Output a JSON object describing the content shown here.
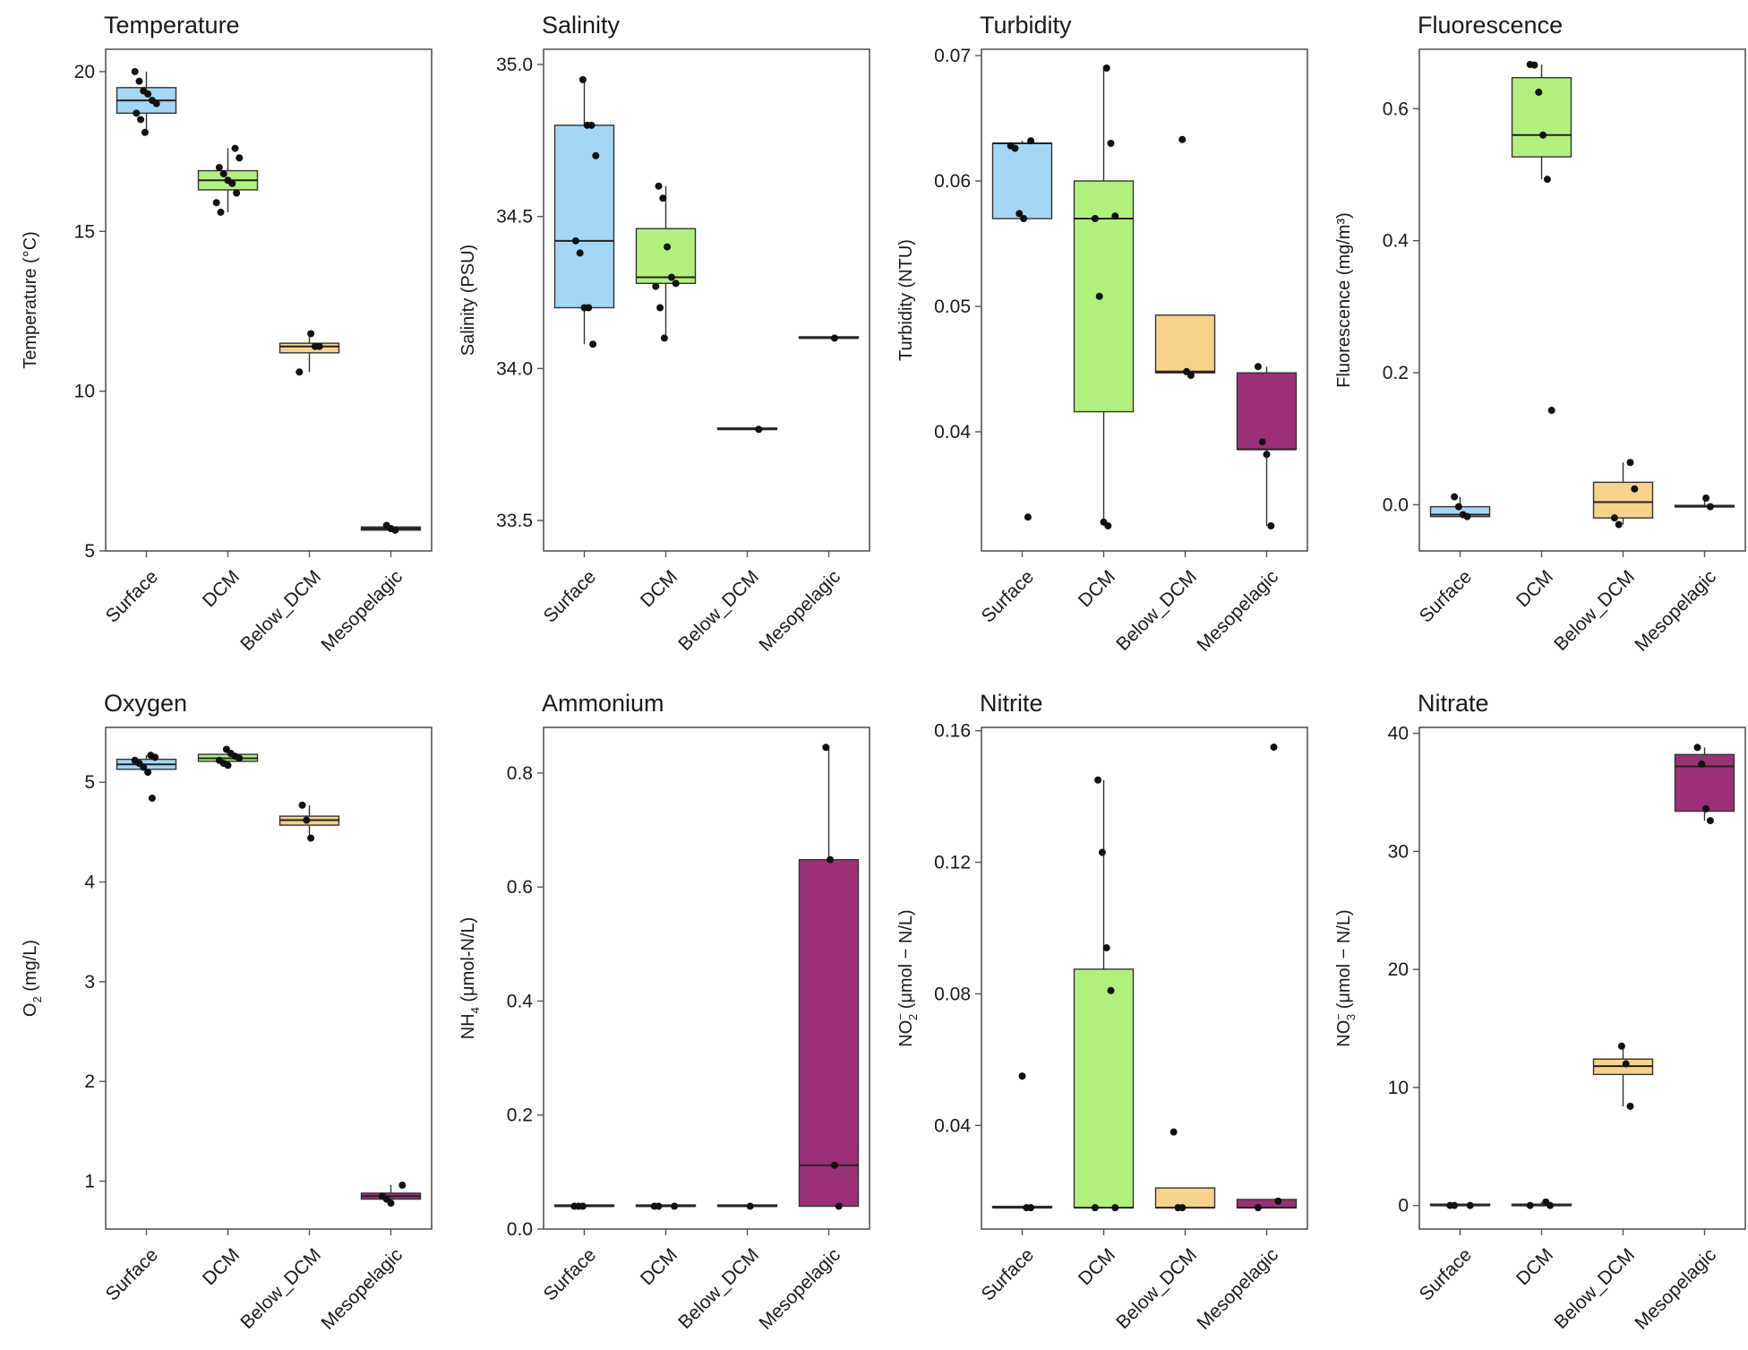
{
  "colors": {
    "Surface": "#a4d6f5",
    "DCM": "#b2f07e",
    "Below_DCM": "#f5d38a",
    "Mesopelagic": "#9b3078",
    "point": "#111111"
  },
  "chart_data": [
    {
      "type": "box",
      "title": "Temperature",
      "ylabel": "Temperature (°C)",
      "categories": [
        "Surface",
        "DCM",
        "Below_DCM",
        "Mesopelagic"
      ],
      "ylim": [
        5,
        20.7
      ],
      "yticks": [
        5,
        10,
        15,
        20
      ],
      "boxes": [
        {
          "q1": 18.7,
          "median": 19.1,
          "q3": 19.5,
          "whisker_low": 18.1,
          "whisker_high": 20.0,
          "points": [
            20.0,
            19.7,
            19.4,
            19.3,
            19.1,
            19.0,
            18.7,
            18.5,
            18.1
          ]
        },
        {
          "q1": 16.3,
          "median": 16.6,
          "q3": 16.9,
          "whisker_low": 15.6,
          "whisker_high": 17.6,
          "points": [
            17.6,
            17.3,
            17.0,
            16.8,
            16.6,
            16.5,
            16.2,
            15.9,
            15.6
          ]
        },
        {
          "q1": 11.2,
          "median": 11.4,
          "q3": 11.5,
          "whisker_low": 10.6,
          "whisker_high": 11.8,
          "points": [
            11.8,
            11.4,
            11.4,
            10.6
          ]
        },
        {
          "q1": 5.65,
          "median": 5.7,
          "q3": 5.75,
          "whisker_low": 5.6,
          "whisker_high": 5.8,
          "points": [
            5.8,
            5.7,
            5.65
          ]
        }
      ]
    },
    {
      "type": "box",
      "title": "Salinity",
      "ylabel": "Salinity (PSU)",
      "categories": [
        "Surface",
        "DCM",
        "Below_DCM",
        "Mesopelagic"
      ],
      "ylim": [
        33.4,
        35.05
      ],
      "yticks": [
        33.5,
        34.0,
        34.5,
        35.0
      ],
      "ytick_labels": [
        "33.5",
        "34.0",
        "34.5",
        "35.0"
      ],
      "boxes": [
        {
          "q1": 34.2,
          "median": 34.42,
          "q3": 34.8,
          "whisker_low": 34.08,
          "whisker_high": 34.95,
          "points": [
            34.95,
            34.8,
            34.8,
            34.7,
            34.42,
            34.38,
            34.2,
            34.2,
            34.08
          ]
        },
        {
          "q1": 34.28,
          "median": 34.3,
          "q3": 34.46,
          "whisker_low": 34.1,
          "whisker_high": 34.6,
          "points": [
            34.6,
            34.56,
            34.4,
            34.3,
            34.28,
            34.27,
            34.2,
            34.1
          ]
        },
        {
          "q1": 33.8,
          "median": 33.8,
          "q3": 33.8,
          "whisker_low": 33.8,
          "whisker_high": 33.8,
          "points": [
            33.8
          ]
        },
        {
          "q1": 34.1,
          "median": 34.1,
          "q3": 34.1,
          "whisker_low": 34.1,
          "whisker_high": 34.1,
          "points": [
            34.1
          ]
        }
      ]
    },
    {
      "type": "box",
      "title": "Turbidity",
      "ylabel": "Turbidity (NTU)",
      "categories": [
        "Surface",
        "DCM",
        "Below_DCM",
        "Mesopelagic"
      ],
      "ylim": [
        0.0305,
        0.0705
      ],
      "yticks": [
        0.04,
        0.05,
        0.06,
        0.07
      ],
      "ytick_labels": [
        "0.04",
        "0.05",
        "0.06",
        "0.07"
      ],
      "boxes": [
        {
          "q1": 0.057,
          "median": 0.063,
          "q3": 0.063,
          "whisker_low": 0.057,
          "whisker_high": 0.0632,
          "points": [
            0.0632,
            0.0628,
            0.0626,
            0.0574,
            0.057,
            0.0332
          ]
        },
        {
          "q1": 0.0416,
          "median": 0.057,
          "q3": 0.06,
          "whisker_low": 0.0325,
          "whisker_high": 0.069,
          "points": [
            0.069,
            0.063,
            0.0572,
            0.057,
            0.0508,
            0.0328,
            0.0325
          ]
        },
        {
          "q1": 0.0447,
          "median": 0.0448,
          "q3": 0.0493,
          "whisker_low": 0.0445,
          "whisker_high": 0.0493,
          "points": [
            0.0633,
            0.0448,
            0.0445
          ]
        },
        {
          "q1": 0.0386,
          "median": 0.0386,
          "q3": 0.0447,
          "whisker_low": 0.0325,
          "whisker_high": 0.0452,
          "points": [
            0.0452,
            0.0392,
            0.0382,
            0.0325
          ]
        }
      ]
    },
    {
      "type": "box",
      "title": "Fluorescence",
      "ylabel": "Fluorescence (mg/m³)",
      "categories": [
        "Surface",
        "DCM",
        "Below_DCM",
        "Mesopelagic"
      ],
      "ylim": [
        -0.07,
        0.69
      ],
      "yticks": [
        0.0,
        0.2,
        0.4,
        0.6
      ],
      "ytick_labels": [
        "0.0",
        "0.2",
        "0.4",
        "0.6"
      ],
      "boxes": [
        {
          "q1": -0.018,
          "median": -0.015,
          "q3": -0.003,
          "whisker_low": -0.018,
          "whisker_high": 0.012,
          "points": [
            0.012,
            -0.003,
            -0.015,
            -0.018
          ]
        },
        {
          "q1": 0.527,
          "median": 0.56,
          "q3": 0.647,
          "whisker_low": 0.493,
          "whisker_high": 0.667,
          "points": [
            0.667,
            0.666,
            0.625,
            0.56,
            0.493,
            0.143
          ]
        },
        {
          "q1": -0.02,
          "median": 0.004,
          "q3": 0.034,
          "whisker_low": -0.03,
          "whisker_high": 0.064,
          "points": [
            0.064,
            0.024,
            -0.02,
            -0.03
          ]
        },
        {
          "q1": -0.003,
          "median": -0.003,
          "q3": -0.003,
          "whisker_low": -0.003,
          "whisker_high": 0.01,
          "points": [
            0.01,
            -0.003
          ]
        }
      ]
    },
    {
      "type": "box",
      "title": "Oxygen",
      "ylabel": "O2 (mg/L)",
      "ylabel_main": "O",
      "ylabel_sub": "2",
      "ylabel_rest": " (mg/L)",
      "categories": [
        "Surface",
        "DCM",
        "Below_DCM",
        "Mesopelagic"
      ],
      "ylim": [
        0.52,
        5.55
      ],
      "yticks": [
        1,
        2,
        3,
        4,
        5
      ],
      "boxes": [
        {
          "q1": 5.13,
          "median": 5.18,
          "q3": 5.23,
          "whisker_low": 5.08,
          "whisker_high": 5.27,
          "points": [
            5.27,
            5.25,
            5.22,
            5.19,
            5.15,
            5.1,
            4.84
          ]
        },
        {
          "q1": 5.21,
          "median": 5.24,
          "q3": 5.28,
          "whisker_low": 5.17,
          "whisker_high": 5.33,
          "points": [
            5.33,
            5.29,
            5.26,
            5.24,
            5.22,
            5.19,
            5.17
          ]
        },
        {
          "q1": 4.57,
          "median": 4.62,
          "q3": 4.66,
          "whisker_low": 4.44,
          "whisker_high": 4.77,
          "points": [
            4.77,
            4.62,
            4.44
          ]
        },
        {
          "q1": 0.82,
          "median": 0.85,
          "q3": 0.88,
          "whisker_low": 0.78,
          "whisker_high": 0.96,
          "points": [
            0.96,
            0.85,
            0.82,
            0.78
          ]
        }
      ]
    },
    {
      "type": "box",
      "title": "Ammonium",
      "ylabel": "NH4 (μmol-N/L)",
      "ylabel_main": "NH",
      "ylabel_sub": "4",
      "ylabel_rest": " (μmol-N/L)",
      "categories": [
        "Surface",
        "DCM",
        "Below_DCM",
        "Mesopelagic"
      ],
      "ylim": [
        0.0,
        0.88
      ],
      "yticks": [
        0.0,
        0.2,
        0.4,
        0.6,
        0.8
      ],
      "ytick_labels": [
        "0.0",
        "0.2",
        "0.4",
        "0.6",
        "0.8"
      ],
      "boxes": [
        {
          "q1": 0.04,
          "median": 0.04,
          "q3": 0.04,
          "whisker_low": 0.04,
          "whisker_high": 0.04,
          "points": [
            0.04,
            0.04,
            0.04
          ]
        },
        {
          "q1": 0.04,
          "median": 0.04,
          "q3": 0.04,
          "whisker_low": 0.04,
          "whisker_high": 0.04,
          "points": [
            0.04,
            0.04,
            0.04
          ]
        },
        {
          "q1": 0.04,
          "median": 0.04,
          "q3": 0.04,
          "whisker_low": 0.04,
          "whisker_high": 0.04,
          "points": [
            0.04
          ]
        },
        {
          "q1": 0.04,
          "median": 0.112,
          "q3": 0.648,
          "whisker_low": 0.04,
          "whisker_high": 0.845,
          "points": [
            0.845,
            0.648,
            0.112,
            0.04
          ]
        }
      ]
    },
    {
      "type": "box",
      "title": "Nitrite",
      "ylabel": "NO2− (μmol − N/L)",
      "ylabel_main": "NO",
      "ylabel_sub": "2",
      "ylabel_sup": "−",
      "ylabel_rest": " (μmol − N/L)",
      "categories": [
        "Surface",
        "DCM",
        "Below_DCM",
        "Mesopelagic"
      ],
      "ylim": [
        0.0085,
        0.161
      ],
      "yticks": [
        0.04,
        0.08,
        0.12,
        0.16
      ],
      "ytick_labels": [
        "0.04",
        "0.08",
        "0.12",
        "0.16"
      ],
      "boxes": [
        {
          "q1": 0.015,
          "median": 0.015,
          "q3": 0.015,
          "whisker_low": 0.015,
          "whisker_high": 0.015,
          "points": [
            0.055,
            0.015,
            0.015
          ]
        },
        {
          "q1": 0.015,
          "median": 0.015,
          "q3": 0.0875,
          "whisker_low": 0.015,
          "whisker_high": 0.145,
          "points": [
            0.145,
            0.123,
            0.094,
            0.081,
            0.015,
            0.015
          ]
        },
        {
          "q1": 0.015,
          "median": 0.015,
          "q3": 0.021,
          "whisker_low": 0.015,
          "whisker_high": 0.021,
          "points": [
            0.038,
            0.015,
            0.015
          ]
        },
        {
          "q1": 0.015,
          "median": 0.015,
          "q3": 0.0175,
          "whisker_low": 0.015,
          "whisker_high": 0.0175,
          "points": [
            0.155,
            0.017,
            0.015
          ]
        }
      ]
    },
    {
      "type": "box",
      "title": "Nitrate",
      "ylabel": "NO3− (μmol − N/L)",
      "ylabel_main": "NO",
      "ylabel_sub": "3",
      "ylabel_sup": "−",
      "ylabel_rest": " (μmol − N/L)",
      "categories": [
        "Surface",
        "DCM",
        "Below_DCM",
        "Mesopelagic"
      ],
      "ylim": [
        -2,
        40.5
      ],
      "yticks": [
        0,
        10,
        20,
        30,
        40
      ],
      "boxes": [
        {
          "q1": 0.0,
          "median": 0.0,
          "q3": 0.0,
          "whisker_low": 0.0,
          "whisker_high": 0.0,
          "points": [
            0.0,
            0.0,
            0.0
          ]
        },
        {
          "q1": 0.0,
          "median": 0.0,
          "q3": 0.05,
          "whisker_low": 0.0,
          "whisker_high": 0.3,
          "points": [
            0.3,
            0.0,
            0.0
          ]
        },
        {
          "q1": 11.1,
          "median": 11.8,
          "q3": 12.4,
          "whisker_low": 8.4,
          "whisker_high": 13.5,
          "points": [
            13.5,
            12.0,
            8.4
          ]
        },
        {
          "q1": 33.4,
          "median": 37.2,
          "q3": 38.2,
          "whisker_low": 32.6,
          "whisker_high": 38.8,
          "points": [
            38.8,
            37.4,
            33.6,
            32.6
          ]
        }
      ]
    }
  ]
}
